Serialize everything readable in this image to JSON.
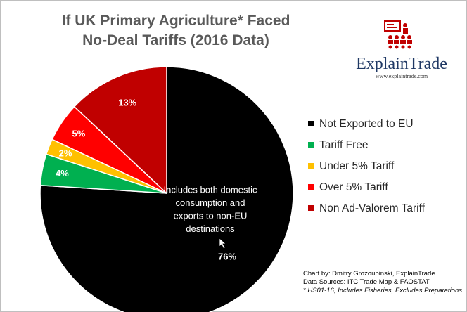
{
  "chart_data": {
    "type": "pie",
    "title": [
      "If UK Primary Agriculture* Faced",
      "No-Deal Tariffs (2016 Data)"
    ],
    "slices": [
      {
        "name": "Not Exported to EU",
        "value": 76,
        "label": "76%",
        "color": "#000000"
      },
      {
        "name": "Tariff Free",
        "value": 4,
        "label": "4%",
        "color": "#00b050"
      },
      {
        "name": "Under 5% Tariff",
        "value": 2,
        "label": "2%",
        "color": "#ffc000"
      },
      {
        "name": "Over 5% Tariff",
        "value": 5,
        "label": "5%",
        "color": "#ff0000"
      },
      {
        "name": "Non Ad-Valorem Tariff",
        "value": 13,
        "label": "13%",
        "color": "#c00000"
      }
    ],
    "annotation": [
      "Includes both domestic",
      "consumption and",
      "exports to non-EU",
      "destinations"
    ],
    "legend_position": "right"
  },
  "logo": {
    "name": "ExplainTrade",
    "url": "www.explaintrade.com",
    "color": "#1f3864",
    "icon_color": "#c00000"
  },
  "source": {
    "line1": "Chart by: Dmitry Grozoubinski, ExplainTrade",
    "line2": "Data Sources: ITC Trade Map & FAOSTAT",
    "line3": "* HS01-16, Includes Fisheries, Excludes Preparations"
  }
}
